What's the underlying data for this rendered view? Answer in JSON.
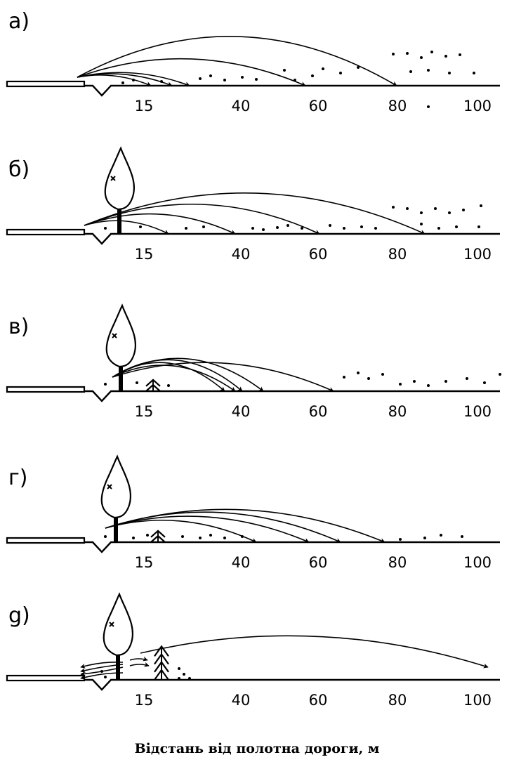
{
  "panels": [
    {
      "label": "а)",
      "ticks": [
        "15",
        "40",
        "60",
        "80",
        "100"
      ]
    },
    {
      "label": "б)",
      "ticks": [
        "15",
        "40",
        "60",
        "80",
        "100"
      ]
    },
    {
      "label": "в)",
      "ticks": [
        "15",
        "40",
        "60",
        "80",
        "100"
      ]
    },
    {
      "label": "г)",
      "ticks": [
        "15",
        "40",
        "60",
        "80",
        "100"
      ]
    },
    {
      "label": "g)",
      "ticks": [
        "15",
        "40",
        "60",
        "80",
        "100"
      ]
    }
  ],
  "caption": "Відстань від полотна дороги, м"
}
